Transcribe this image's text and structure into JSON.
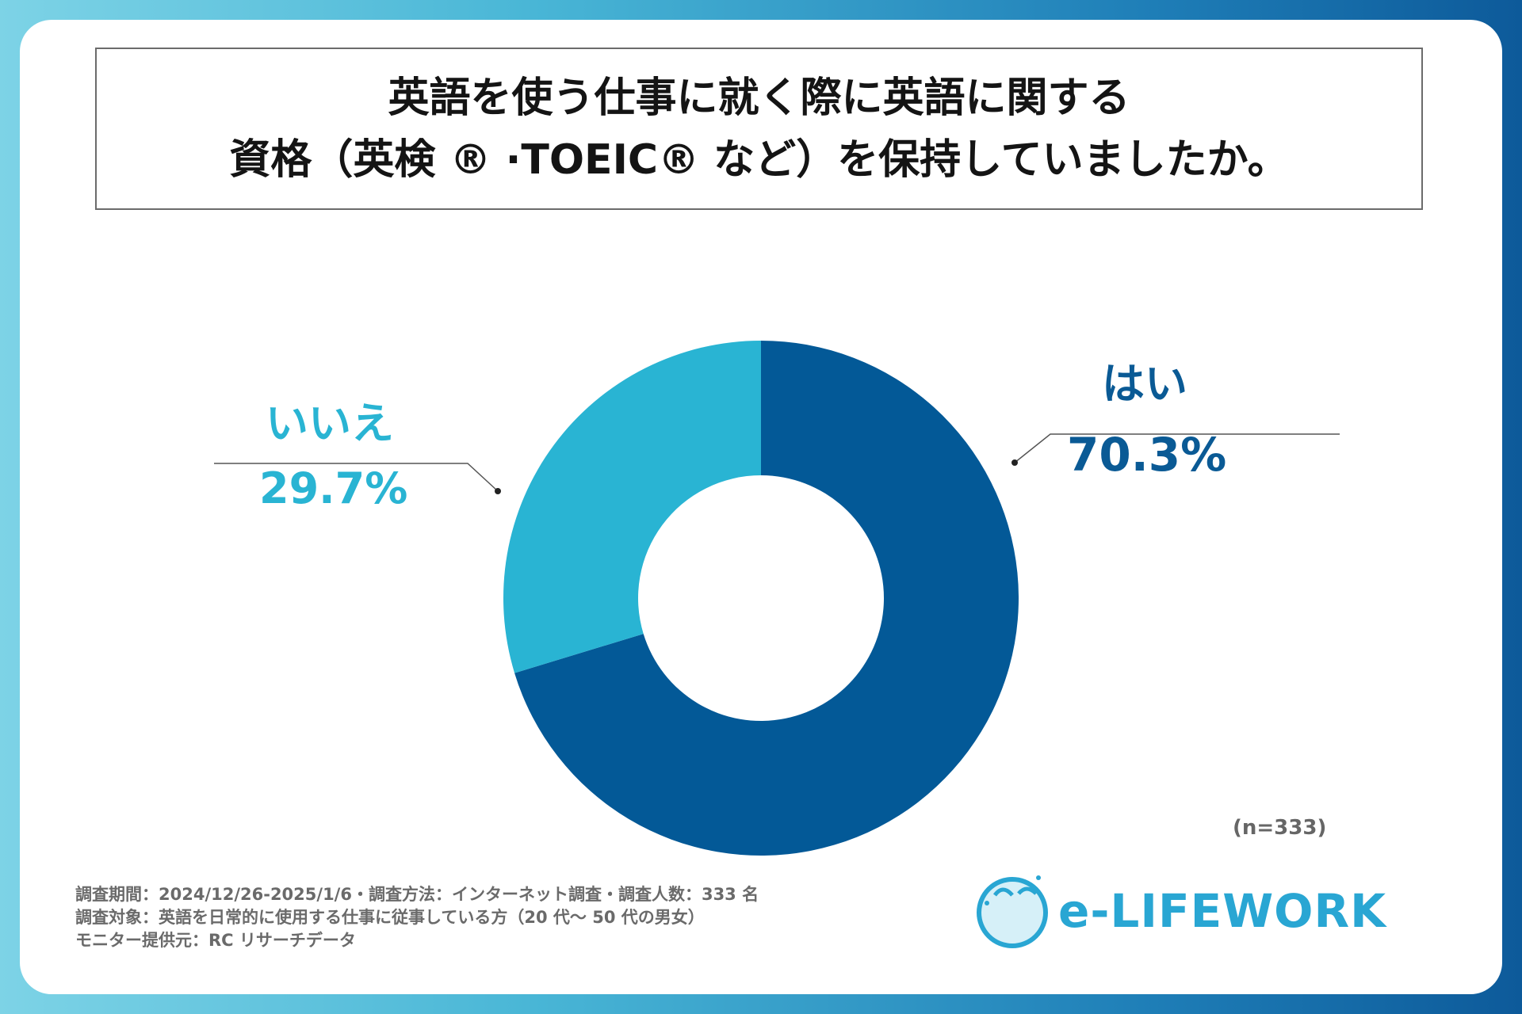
{
  "title": {
    "line1": "英語を使う仕事に就く際に英語に関する",
    "line2": "資格（英検 ® ·TOEIC® など）を保持していましたか。"
  },
  "chart_data": {
    "type": "pie",
    "subtype": "donut",
    "slices": [
      {
        "label": "はい",
        "value": 70.3,
        "display": "70.3%",
        "color": "#035997"
      },
      {
        "label": "いいえ",
        "value": 29.7,
        "display": "29.7%",
        "color": "#29b4d3"
      }
    ],
    "sample_size": "(n=333)"
  },
  "notes": {
    "line1": "調査期間：2024/12/26-2025/1/6・調査方法：インターネット調査・調査人数：333 名",
    "line2": "調査対象：英語を日常的に使用する仕事に従事している方（20 代～ 50 代の男女）",
    "line3": "モニター提供元：RC リサーチデータ"
  },
  "logo": {
    "text": "e-LIFEWORK",
    "color": "#29a6d3"
  }
}
